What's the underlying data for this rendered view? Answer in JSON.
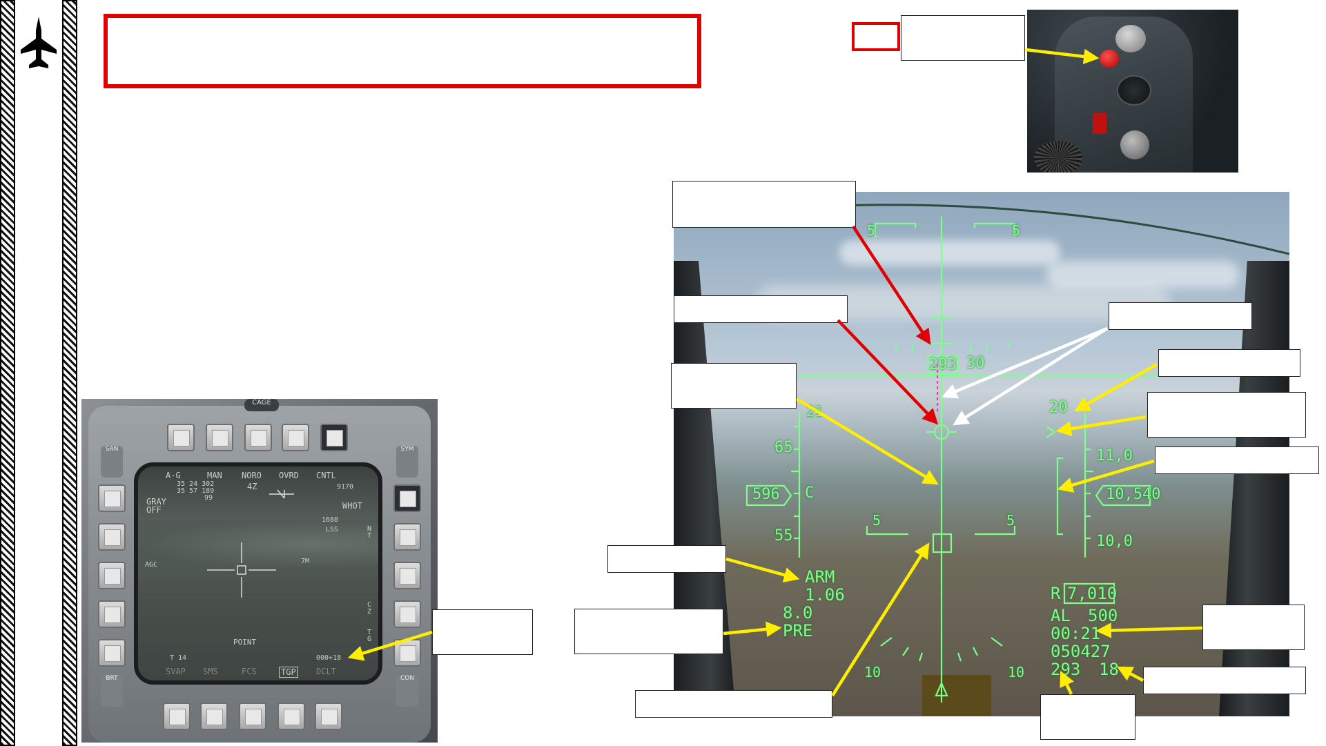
{
  "sidebar": {
    "icon": "jet-silhouette-icon"
  },
  "colors": {
    "hud_green": "#7dff8a",
    "highlight_red": "#e00000",
    "arrow_yellow": "#ffee00"
  },
  "mfd": {
    "top_labels": [
      "A-G",
      "MAN",
      "NORO",
      "OVRD",
      "CNTL"
    ],
    "left_top": [
      "GRAY",
      "OFF"
    ],
    "coords_line1": "35 24 302",
    "coords_line2": "35 57 189",
    "coords_line3": "99",
    "value_4z": "4Z",
    "value_9170": "9170",
    "whot": "WHOT",
    "value_1688": "1688",
    "lss": "LSS",
    "value_7m": "7M",
    "point": "POINT",
    "t14": "T 14",
    "readout": "000+18",
    "bottom_labels": [
      "SVAP",
      "SMS",
      "FCS",
      "TGP",
      "DCLT"
    ],
    "left_vertical": "AGC",
    "right_vertical_1": "N T",
    "right_vertical_2": "C Z",
    "right_vertical_3": "T G",
    "osb_san": "SAN",
    "osb_sym": "SYM",
    "osb_brt": "BRT",
    "osb_con": "CON",
    "cage": "CAGE"
  },
  "hud": {
    "pitch_5_left": "5",
    "pitch_5_right": "5",
    "heading_293": "293",
    "heading_30": "30",
    "value_20": "20",
    "value_21": "21",
    "value_65": "65",
    "value_55": "55",
    "airspeed": "596",
    "c_mark": "C",
    "alt_110": "11,0",
    "altitude": "10,540",
    "alt_100": "10,0",
    "pitch_5_low_left": "5",
    "pitch_5_low_right": "5",
    "arm": "ARM",
    "value_106": "1.06",
    "value_80": "8.0",
    "pre": "PRE",
    "range_r": "R",
    "range": "7,010",
    "al": "AL",
    "al_value": "500",
    "time": "00:21",
    "datetime": "050427",
    "heading_bottom": "293",
    "value_18": "18",
    "bank_10_left": "10",
    "bank_10_right": "10"
  }
}
